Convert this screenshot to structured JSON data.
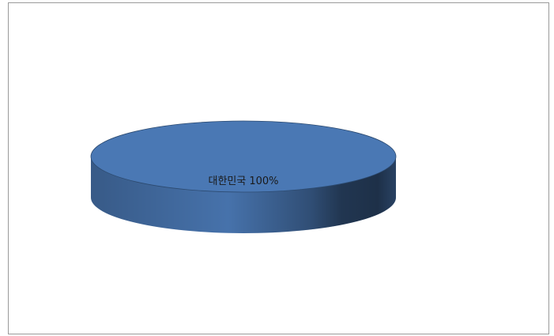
{
  "chart_data": {
    "type": "pie",
    "categories": [
      "대한민국"
    ],
    "values": [
      100
    ],
    "value_labels": [
      "100%"
    ],
    "colors": [
      "#4a78b4"
    ]
  }
}
